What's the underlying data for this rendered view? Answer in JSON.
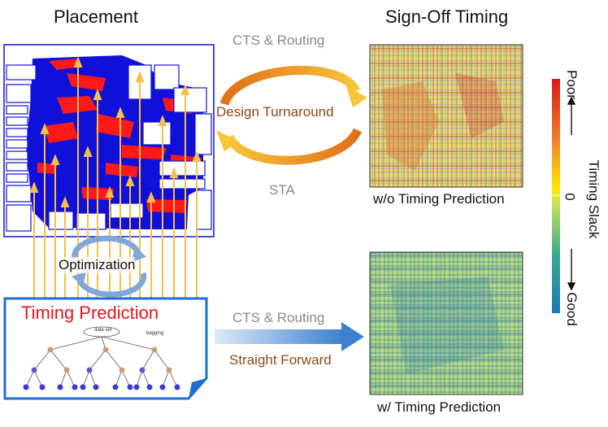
{
  "titles": {
    "placement": "Placement",
    "signoff": "Sign-Off Timing"
  },
  "loop": {
    "top_label": "CTS & Routing",
    "center_label": "Design Turnaround",
    "bottom_label": "STA"
  },
  "forward": {
    "top_label": "CTS & Routing",
    "bottom_label": "Straight Forward"
  },
  "captions": {
    "without": "w/o Timing Prediction",
    "with": "w/ Timing Prediction"
  },
  "optimization_label": "Optimization",
  "prediction": {
    "title": "Timing Prediction",
    "tree_root": "data set",
    "tree_right": "bagging"
  },
  "colorbar": {
    "top": "Poor",
    "middle": "0",
    "bottom": "Good",
    "axis": "Timing Slack",
    "colors": [
      "#d7191c",
      "#f07c2a",
      "#ffe900",
      "#9ad25f",
      "#3aaa8f",
      "#1f78b4"
    ]
  },
  "colors": {
    "placement_blue": "#1010d8",
    "congestion_red": "#ff1a1a",
    "loop_orange": "#f29a1a",
    "arrow_gold": "#f5c04a",
    "brown_text": "#8b4a14"
  }
}
